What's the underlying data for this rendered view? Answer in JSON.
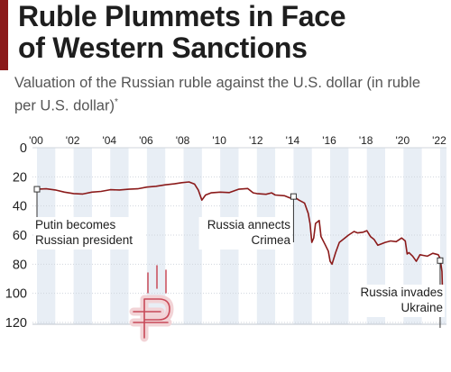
{
  "header": {
    "title": "Ruble Plummets in Face\nof Western Sanctions",
    "subtitle": "Valuation of the Russian ruble against the U.S. dollar (in ruble per U.S. dollar)",
    "subtitle_note": "*"
  },
  "colors": {
    "accent": "#8b1a1a",
    "line": "#8b1a1a",
    "band": "#e8eef5",
    "ruble_icon": "#c84a58",
    "ruble_icon_fill": "#f2d3d6"
  },
  "chart_data": {
    "type": "line",
    "title": "Ruble Plummets in Face of Western Sanctions",
    "subtitle": "Valuation of the Russian ruble against the U.S. dollar (in ruble per U.S. dollar)*",
    "x_tick_labels": [
      "'00",
      "'02",
      "'04",
      "'06",
      "'08",
      "'10",
      "'12",
      "'14",
      "'16",
      "'18",
      "'20",
      "'22"
    ],
    "y_ticks": [
      0,
      20,
      40,
      60,
      80,
      100,
      120
    ],
    "ylim": [
      0,
      120
    ],
    "y_inverted": true,
    "xlim": [
      2000,
      2022.2
    ],
    "grid": "alternating vertical bands",
    "series": [
      {
        "name": "",
        "x": [
          2000,
          2000.5,
          2001,
          2001.5,
          2002,
          2002.5,
          2003,
          2003.5,
          2004,
          2004.5,
          2005,
          2005.5,
          2006,
          2006.5,
          2007,
          2007.5,
          2007.9,
          2008.3,
          2008.6,
          2008.8,
          2009,
          2009.2,
          2009.5,
          2010,
          2010.5,
          2011,
          2011.5,
          2011.8,
          2012,
          2012.5,
          2012.8,
          2013,
          2013.5,
          2013.8,
          2014,
          2014.3,
          2014.6,
          2014.8,
          2014.9,
          2015.0,
          2015.1,
          2015.2,
          2015.4,
          2015.5,
          2015.7,
          2015.9,
          2016.0,
          2016.1,
          2016.3,
          2016.5,
          2016.7,
          2017.0,
          2017.3,
          2017.5,
          2017.8,
          2018.0,
          2018.2,
          2018.4,
          2018.6,
          2018.8,
          2019.0,
          2019.3,
          2019.6,
          2019.9,
          2020.1,
          2020.2,
          2020.3,
          2020.5,
          2020.7,
          2020.9,
          2021.1,
          2021.3,
          2021.6,
          2021.9,
          2022.0,
          2022.1,
          2022.15
        ],
        "values": [
          28.5,
          28.2,
          29,
          30.5,
          31.5,
          31.8,
          30.5,
          30,
          28.8,
          29,
          28.5,
          28.2,
          27,
          26.5,
          25.5,
          24.8,
          24,
          23.5,
          25,
          29,
          36,
          32.5,
          31,
          30.5,
          30.8,
          28.5,
          28,
          31,
          31.5,
          32,
          31,
          32.5,
          33,
          34.5,
          33.5,
          36,
          38,
          45,
          52,
          65,
          62,
          52,
          50,
          61,
          66,
          71,
          78,
          80,
          72,
          65,
          63,
          60,
          57.5,
          58.5,
          58,
          57,
          61,
          63,
          67,
          66,
          65,
          64,
          64.5,
          62,
          64,
          73,
          72,
          74.5,
          78,
          73.5,
          74,
          74.5,
          72.5,
          73.5,
          76,
          85,
          110
        ]
      }
    ],
    "annotations": [
      {
        "x": 2000,
        "y": 28.5,
        "label": "Putin becomes\nRussian president"
      },
      {
        "x": 2014.0,
        "y": 33.5,
        "label": "Russia annects\nCrimea"
      },
      {
        "x": 2022.0,
        "y": 77.5,
        "label": "Russia invades\nUkraine"
      }
    ]
  }
}
